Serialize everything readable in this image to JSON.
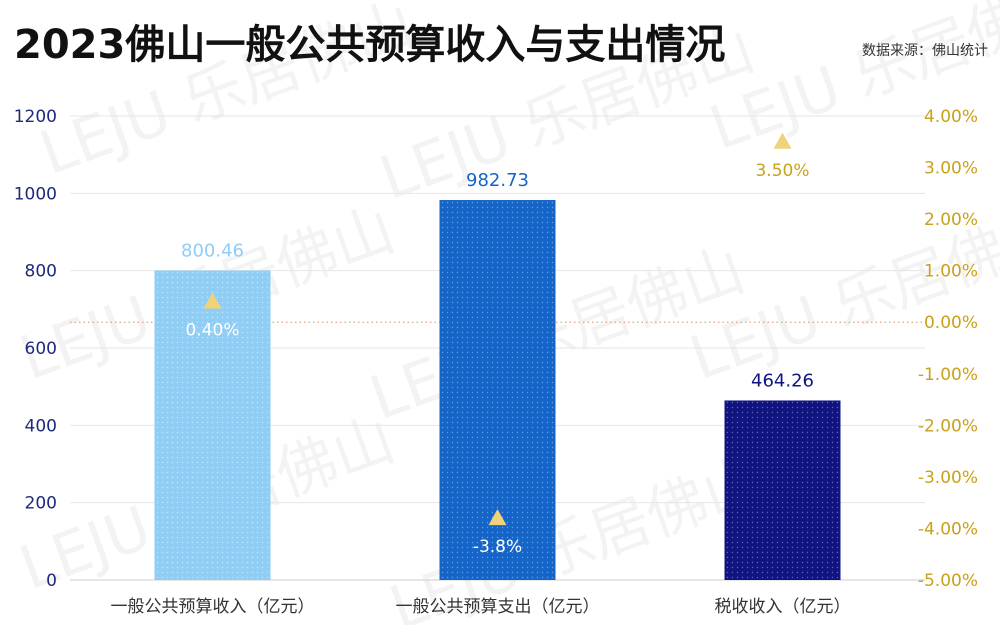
{
  "header": {
    "title": "2023佛山一般公共预算收入与支出情况",
    "source": "数据来源：佛山统计"
  },
  "colors": {
    "bar1": "#8fcdf5",
    "bar2": "#1565c8",
    "bar3": "#0f1480",
    "left_axis": "#1f2a7a",
    "right_axis": "#c9a11a",
    "marker": "#f0d27a",
    "zero_line": "#e8a07a"
  },
  "chart_data": {
    "type": "bar",
    "categories": [
      "一般公共预算收入（亿元）",
      "一般公共预算支出（亿元）",
      "税收收入（亿元）"
    ],
    "series": [
      {
        "values": [
          800.46,
          982.73,
          464.26
        ],
        "value_labels": [
          "800.46",
          "982.73",
          "464.26"
        ]
      },
      {
        "type": "scatter",
        "axis": "right",
        "values": [
          0.4,
          -3.8,
          3.5
        ],
        "value_labels": [
          "0.40%",
          "-3.8%",
          "3.50%"
        ]
      }
    ],
    "ylim_left": [
      0,
      1200
    ],
    "yticks_left": [
      "0",
      "200",
      "400",
      "600",
      "800",
      "1000",
      "1200"
    ],
    "ylim_right": [
      -5,
      4
    ],
    "yticks_right": [
      "-5.00%",
      "-4.00%",
      "-3.00%",
      "-2.00%",
      "-1.00%",
      "0.00%",
      "1.00%",
      "2.00%",
      "3.00%",
      "4.00%"
    ],
    "grid": true
  }
}
